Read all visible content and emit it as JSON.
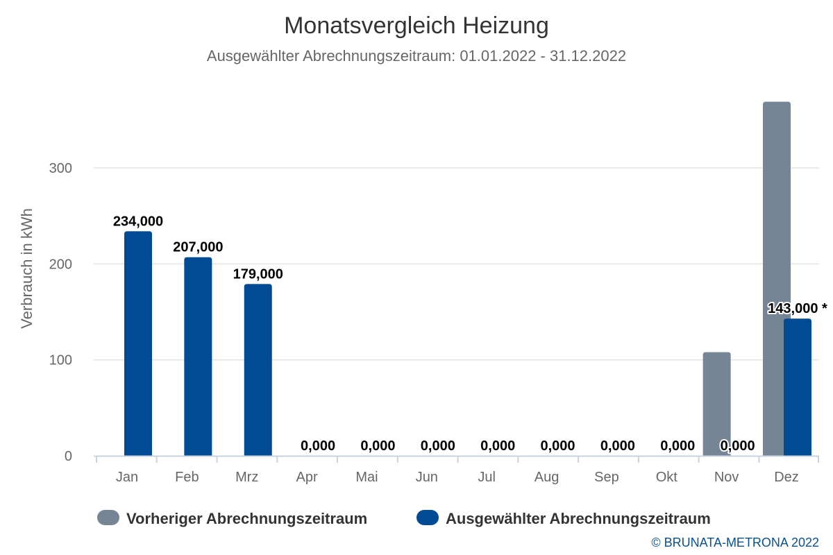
{
  "chart_data": {
    "type": "bar",
    "title": "Monatsvergleich Heizung",
    "subtitle": "Ausgewählter Abrechnungszeitraum: 01.01.2022 - 31.12.2022",
    "xlabel": "",
    "ylabel": "Verbrauch in kWh",
    "ylim": [
      0,
      400
    ],
    "yticks": [
      0,
      100,
      200,
      300
    ],
    "grid": true,
    "legend_position": "bottom",
    "categories": [
      "Jan",
      "Feb",
      "Mrz",
      "Apr",
      "Mai",
      "Jun",
      "Jul",
      "Aug",
      "Sep",
      "Okt",
      "Nov",
      "Dez"
    ],
    "series": [
      {
        "name": "Vorheriger Abrechnungszeitraum",
        "color": "#758595",
        "values": [
          0,
          0,
          0,
          0,
          0,
          0,
          0,
          0,
          0,
          0,
          108,
          369
        ],
        "labels": [
          "",
          "",
          "",
          "",
          "",
          "",
          "",
          "",
          "",
          "",
          "",
          ""
        ]
      },
      {
        "name": "Ausgewählter Abrechnungszeitraum",
        "color": "#004b93",
        "values": [
          234,
          207,
          179,
          0,
          0,
          0,
          0,
          0,
          0,
          0,
          0,
          143
        ],
        "labels": [
          "234,000",
          "207,000",
          "179,000",
          "0,000",
          "0,000",
          "0,000",
          "0,000",
          "0,000",
          "0,000",
          "0,000",
          "0,000",
          "143,000 *"
        ]
      }
    ],
    "credit": "© BRUNATA-METRONA 2022"
  }
}
